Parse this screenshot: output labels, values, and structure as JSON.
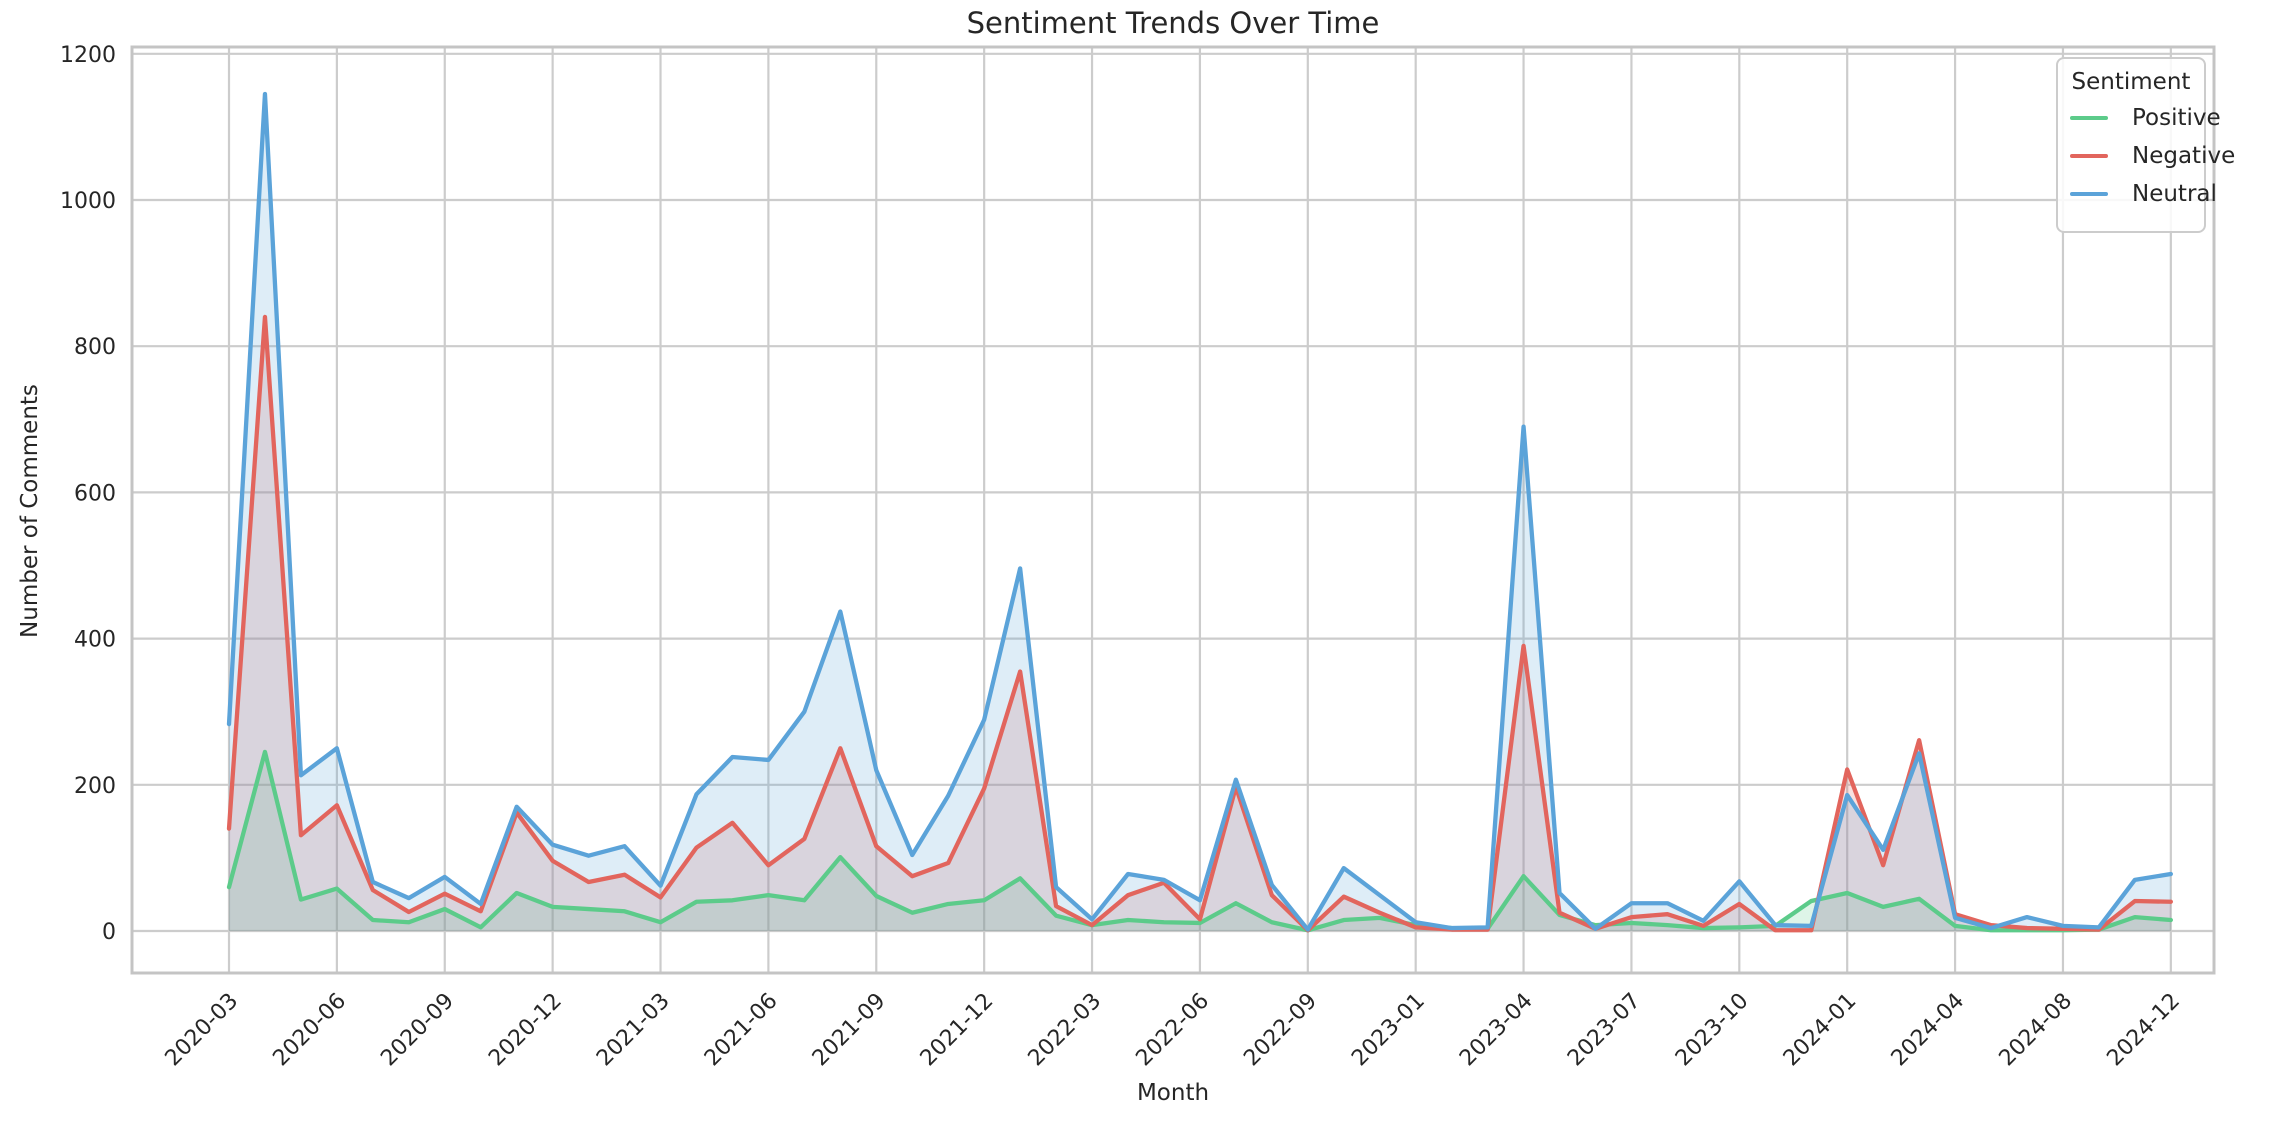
{
  "chart_data": {
    "type": "area",
    "title": "Sentiment Trends Over Time",
    "xlabel": "Month",
    "ylabel": "Number of Comments",
    "ylim": [
      0,
      1200
    ],
    "grid": true,
    "legend": {
      "title": "Sentiment",
      "position": "upper right"
    },
    "yticks": [
      0,
      200,
      400,
      600,
      800,
      1000,
      1200
    ],
    "xtick_labels": [
      "2020-03",
      "2020-06",
      "2020-09",
      "2020-12",
      "2021-03",
      "2021-06",
      "2021-09",
      "2021-12",
      "2022-03",
      "2022-06",
      "2022-09",
      "2023-01",
      "2023-04",
      "2023-07",
      "2023-10",
      "2024-01",
      "2024-04",
      "2024-08",
      "2024-12"
    ],
    "xtick_every": 3,
    "categories": [
      "2020-03",
      "2020-04",
      "2020-05",
      "2020-06",
      "2020-07",
      "2020-08",
      "2020-09",
      "2020-10",
      "2020-11",
      "2020-12",
      "2021-01",
      "2021-02",
      "2021-03",
      "2021-04",
      "2021-05",
      "2021-06",
      "2021-07",
      "2021-08",
      "2021-09",
      "2021-10",
      "2021-11",
      "2021-12",
      "2022-01",
      "2022-02",
      "2022-03",
      "2022-04",
      "2022-05",
      "2022-06",
      "2022-07",
      "2022-08",
      "2022-09",
      "2022-10",
      "2022-12",
      "2023-01",
      "2023-02",
      "2023-03",
      "2023-04",
      "2023-05",
      "2023-06",
      "2023-07",
      "2023-08",
      "2023-09",
      "2023-10",
      "2023-11",
      "2023-12",
      "2024-01",
      "2024-02",
      "2024-03",
      "2024-04",
      "2024-06",
      "2024-07",
      "2024-08",
      "2024-09",
      "2024-11",
      "2024-12"
    ],
    "series": [
      {
        "name": "Positive",
        "color": "#5CCB8A",
        "fill_opacity": 0.2,
        "values": [
          60,
          245,
          43,
          58,
          15,
          12,
          30,
          5,
          52,
          33,
          30,
          27,
          12,
          40,
          42,
          49,
          42,
          101,
          48,
          25,
          37,
          42,
          72,
          21,
          8,
          15,
          12,
          11,
          38,
          12,
          1,
          15,
          18,
          8,
          4,
          3,
          75,
          22,
          8,
          11,
          8,
          4,
          5,
          7,
          41,
          52,
          33,
          44,
          7,
          1,
          1,
          1,
          2,
          19,
          15
        ]
      },
      {
        "name": "Negative",
        "color": "#E2655D",
        "fill_opacity": 0.2,
        "values": [
          140,
          840,
          131,
          172,
          56,
          26,
          51,
          27,
          162,
          96,
          67,
          77,
          46,
          114,
          148,
          90,
          126,
          250,
          116,
          75,
          93,
          195,
          355,
          34,
          8,
          49,
          66,
          16,
          197,
          49,
          1,
          47,
          25,
          5,
          2,
          2,
          390,
          25,
          3,
          19,
          23,
          7,
          37,
          1,
          1,
          221,
          90,
          261,
          23,
          8,
          4,
          3,
          2,
          41,
          40
        ]
      },
      {
        "name": "Neutral",
        "color": "#5BA3D9",
        "fill_opacity": 0.2,
        "values": [
          283,
          1145,
          213,
          250,
          67,
          45,
          74,
          37,
          170,
          118,
          103,
          116,
          62,
          187,
          238,
          234,
          300,
          437,
          220,
          104,
          185,
          289,
          496,
          60,
          16,
          78,
          70,
          42,
          207,
          63,
          2,
          86,
          49,
          12,
          4,
          5,
          690,
          52,
          3,
          38,
          38,
          14,
          68,
          8,
          7,
          186,
          111,
          243,
          18,
          4,
          19,
          7,
          5,
          70,
          78
        ]
      }
    ],
    "colors": {
      "gridline": "#cccccc",
      "plot_border": "#c4c4c4",
      "text": "#262626",
      "background": "#ffffff"
    }
  }
}
